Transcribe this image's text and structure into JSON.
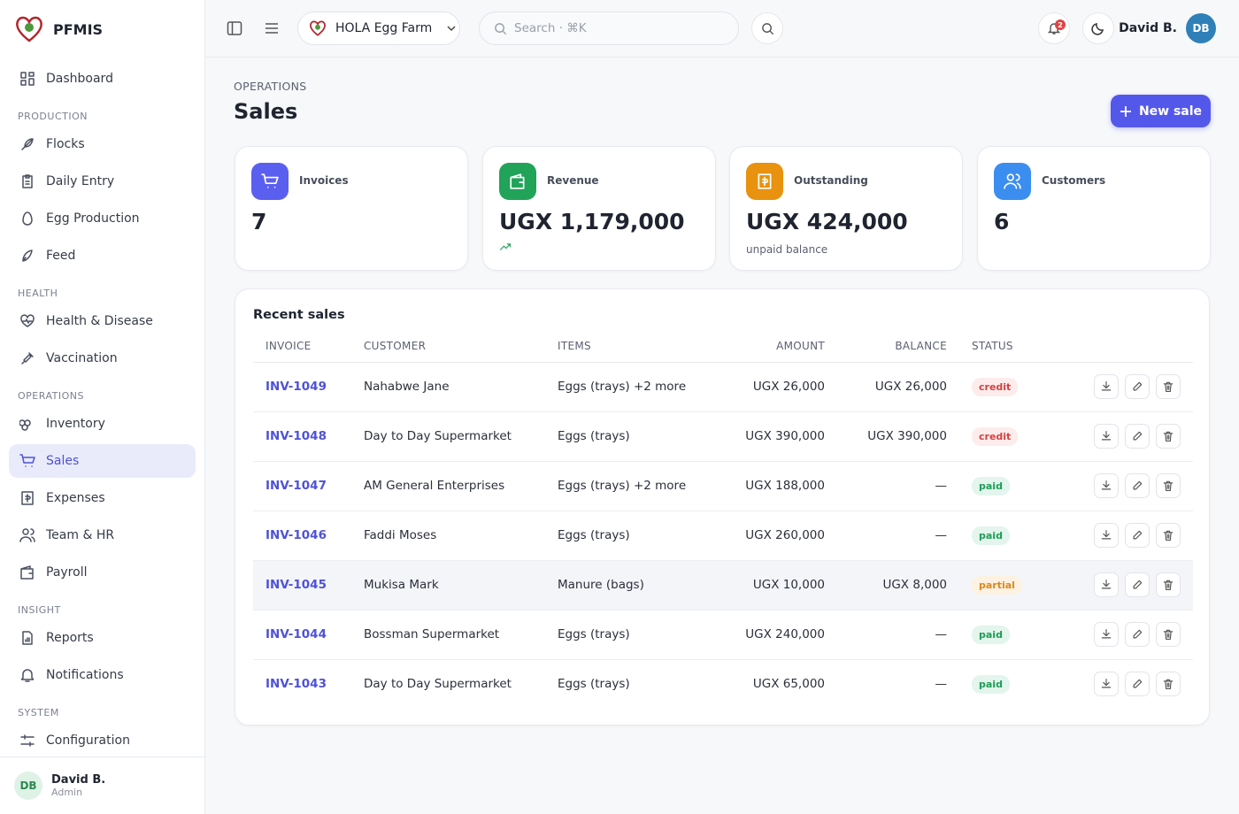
{
  "brand": "PFMIS",
  "nav": {
    "top": [
      "Dashboard"
    ],
    "groups": [
      {
        "heading": "PRODUCTION",
        "items": [
          "Flocks",
          "Daily Entry",
          "Egg Production",
          "Feed"
        ]
      },
      {
        "heading": "HEALTH",
        "items": [
          "Health & Disease",
          "Vaccination"
        ]
      },
      {
        "heading": "OPERATIONS",
        "items": [
          "Inventory",
          "Sales",
          "Expenses",
          "Team & HR",
          "Payroll"
        ]
      },
      {
        "heading": "INSIGHT",
        "items": [
          "Reports",
          "Notifications"
        ]
      },
      {
        "heading": "SYSTEM",
        "items": [
          "Configuration"
        ]
      }
    ],
    "active": "Sales"
  },
  "sidebar_user": {
    "initials": "DB",
    "name": "David B.",
    "role": "Admin"
  },
  "topbar": {
    "farm": "HOLA Egg Farm",
    "search_placeholder": "Search · ⌘K",
    "notifications": "2",
    "user_name": "David B.",
    "user_initials": "DB"
  },
  "header": {
    "section": "OPERATIONS",
    "title": "Sales",
    "action": "New sale"
  },
  "stats": [
    {
      "label": "Invoices",
      "value": "7",
      "color": "#5b5ff0"
    },
    {
      "label": "Revenue",
      "value": "UGX 1,179,000",
      "trend": "up",
      "color": "#22a35a"
    },
    {
      "label": "Outstanding",
      "value": "UGX 424,000",
      "note": "unpaid balance",
      "color": "#e8920f"
    },
    {
      "label": "Customers",
      "value": "6",
      "color": "#3b8ef0"
    }
  ],
  "table": {
    "title": "Recent sales",
    "columns": [
      "INVOICE",
      "CUSTOMER",
      "ITEMS",
      "AMOUNT",
      "BALANCE",
      "STATUS"
    ],
    "rows": [
      [
        "INV-1049",
        "Nahabwe Jane",
        "Eggs (trays) +2 more",
        "UGX 26,000",
        "UGX 26,000",
        "credit"
      ],
      [
        "INV-1048",
        "Day to Day Supermarket",
        "Eggs (trays)",
        "UGX 390,000",
        "UGX 390,000",
        "credit"
      ],
      [
        "INV-1047",
        "AM General Enterprises",
        "Eggs (trays) +2 more",
        "UGX 188,000",
        "—",
        "paid"
      ],
      [
        "INV-1046",
        "Faddi Moses",
        "Eggs (trays)",
        "UGX 260,000",
        "—",
        "paid"
      ],
      [
        "INV-1045",
        "Mukisa Mark",
        "Manure (bags)",
        "UGX 10,000",
        "UGX 8,000",
        "partial"
      ],
      [
        "INV-1044",
        "Bossman Supermarket",
        "Eggs (trays)",
        "UGX 240,000",
        "—",
        "paid"
      ],
      [
        "INV-1043",
        "Day to Day Supermarket",
        "Eggs (trays)",
        "UGX 65,000",
        "—",
        "paid"
      ]
    ]
  }
}
